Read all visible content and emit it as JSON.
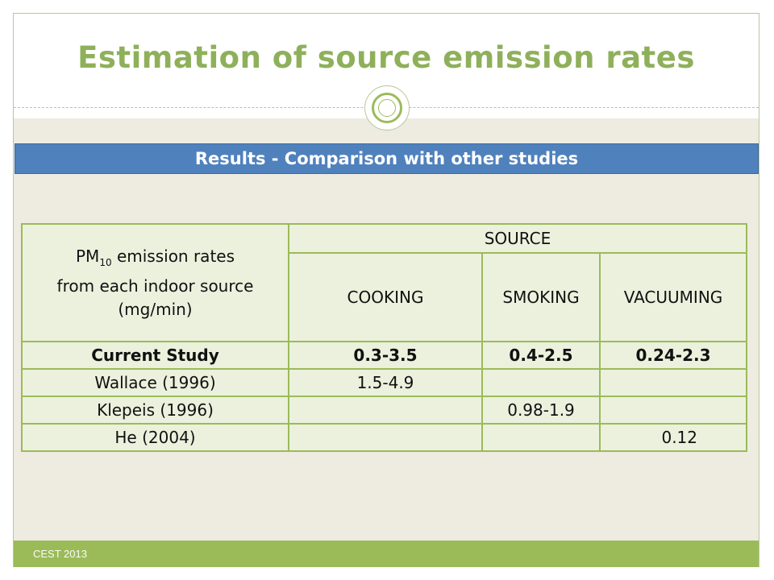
{
  "slide": {
    "title": "Estimation of source emission rates",
    "banner": "Results - Comparison with other studies",
    "footer": "CEST 2013"
  },
  "table": {
    "header": {
      "pm_prefix": "PM",
      "pm_subscript": "10",
      "line1_rest": " emission rates",
      "line2": "from each indoor source",
      "line3": "(mg/min)",
      "source": "SOURCE",
      "columns": [
        "COOKING",
        "SMOKING",
        "VACUUMING"
      ]
    },
    "rows": [
      {
        "study": "Current Study",
        "values": [
          "0.3-3.5",
          "0.4-2.5",
          "0.24-2.3"
        ]
      },
      {
        "study": "Wallace (1996)",
        "values": [
          "1.5-4.9",
          "",
          ""
        ]
      },
      {
        "study": "Klepeis (1996)",
        "values": [
          "",
          "0.98-1.9",
          ""
        ]
      },
      {
        "study": "He (2004)",
        "values": [
          "",
          "",
          "0.12"
        ]
      }
    ]
  }
}
